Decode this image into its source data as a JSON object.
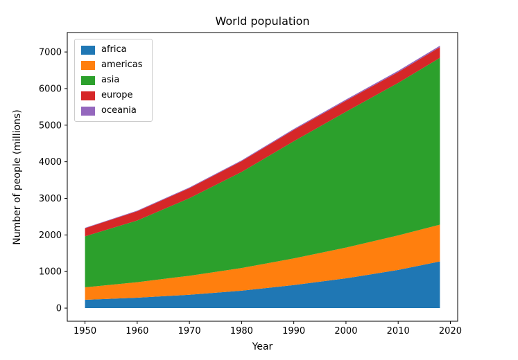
{
  "chart_data": {
    "type": "area",
    "stacked": true,
    "title": "World population",
    "xlabel": "Year",
    "ylabel": "Number of people (millions)",
    "x": [
      1950,
      1960,
      1970,
      1980,
      1990,
      2000,
      2010,
      2018
    ],
    "series": [
      {
        "name": "africa",
        "color": "#1f77b4",
        "values": [
          228,
          284,
          365,
          477,
          631,
          814,
          1044,
          1275
        ]
      },
      {
        "name": "americas",
        "color": "#ff7f0e",
        "values": [
          340,
          425,
          519,
          619,
          727,
          840,
          943,
          1006
        ]
      },
      {
        "name": "asia",
        "color": "#2ca02c",
        "values": [
          1394,
          1686,
          2120,
          2625,
          3202,
          3714,
          4169,
          4560
        ]
      },
      {
        "name": "europe",
        "color": "#d62728",
        "values": [
          220,
          253,
          276,
          295,
          310,
          303,
          294,
          293
        ]
      },
      {
        "name": "oceania",
        "color": "#9467bd",
        "values": [
          12,
          15,
          19,
          22,
          26,
          31,
          36,
          39
        ]
      }
    ],
    "xticks": [
      1950,
      1960,
      1970,
      1980,
      1990,
      2000,
      2010,
      2020
    ],
    "yticks": [
      0,
      1000,
      2000,
      3000,
      4000,
      5000,
      6000,
      7000
    ],
    "xlim": [
      1946.6,
      2021.4
    ],
    "ylim": [
      -358.65,
      7531.65
    ],
    "legend_position": "upper left",
    "grid": false,
    "background": "#ffffff",
    "axis_color": "#000000"
  }
}
